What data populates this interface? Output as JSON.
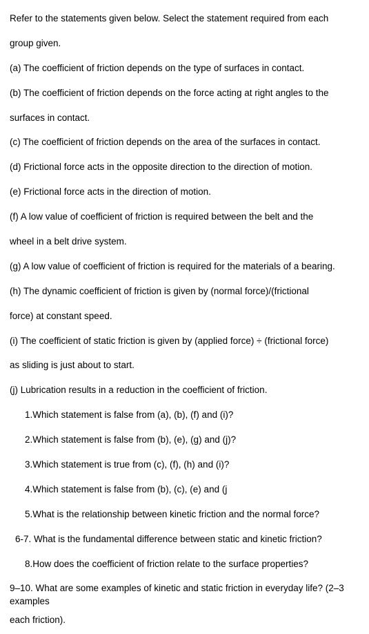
{
  "intro": {
    "l1": "Refer to the statements given below. Select the statement required from each",
    "l2": "group given."
  },
  "stmts": {
    "a": "(a) The coefficient of friction depends on the type of surfaces in contact.",
    "b1": "(b) The coefficient of friction depends on the force acting at right angles to the",
    "b2": "surfaces in contact.",
    "c": "(c) The coefficient of friction depends on the area of the surfaces in contact.",
    "d": "(d) Frictional force acts in the opposite direction to the direction of motion.",
    "e": "(e) Frictional force acts in the direction of motion.",
    "f1": "(f) A low value of coefficient of friction is required between the belt and the",
    "f2": "wheel in a belt drive system.",
    "g": "(g) A low value of coefficient of friction is required for the materials of a bearing.",
    "h1": "(h) The dynamic coefficient of friction is given by (normal force)/(frictional",
    "h2": "force) at constant speed.",
    "i1": "(i) The coefficient of static friction is given by (applied force) ÷ (frictional force)",
    "i2": "as sliding is just about to start.",
    "j": "(j) Lubrication results in a reduction in the coefficient of friction."
  },
  "qs": {
    "q1": "1.Which statement is false from (a), (b), (f) and (i)?",
    "q2": "2.Which statement is false from (b), (e), (g) and (j)?",
    "q3": "3.Which statement is true from (c), (f), (h) and (i)?",
    "q4": "4.Which statement is false from (b), (c), (e) and (j",
    "q5": "5.What is the relationship between kinetic friction and the normal force?",
    "q67": "6-7. What is the fundamental difference between static and kinetic friction?",
    "q8": "8.How does the coefficient of friction relate to the surface properties?",
    "q910a": "9–10. What are some examples of kinetic and static friction in everyday life? (2–3 examples",
    "q910b": "each friction)."
  }
}
